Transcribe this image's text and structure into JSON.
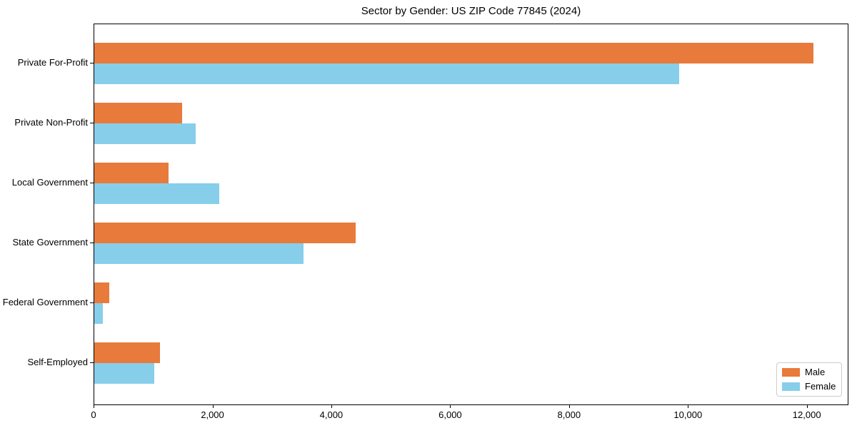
{
  "chart_data": {
    "type": "bar",
    "orientation": "horizontal",
    "title": "Sector by Gender: US ZIP Code 77845 (2024)",
    "categories": [
      "Private For-Profit",
      "Private Non-Profit",
      "Local Government",
      "State Government",
      "Federal Government",
      "Self-Employed"
    ],
    "series": [
      {
        "name": "Male",
        "color": "#E87A3C",
        "values": [
          12100,
          1480,
          1250,
          4400,
          250,
          1100
        ]
      },
      {
        "name": "Female",
        "color": "#87CEEB",
        "values": [
          9840,
          1710,
          2100,
          3520,
          140,
          1010
        ]
      }
    ],
    "xlabel": "",
    "ylabel": "",
    "xlim": [
      0,
      12700
    ],
    "x_ticks": {
      "values": [
        0,
        2000,
        4000,
        6000,
        8000,
        10000,
        12000
      ],
      "labels": [
        "0",
        "2,000",
        "4,000",
        "6,000",
        "8,000",
        "10,000",
        "12,000"
      ]
    },
    "grid": false,
    "legend_position": "lower right",
    "colors": {
      "male": "#E87A3C",
      "female": "#87CEEB",
      "spine": "#000000",
      "background": "#ffffff",
      "legend_border": "#cccccc"
    }
  }
}
